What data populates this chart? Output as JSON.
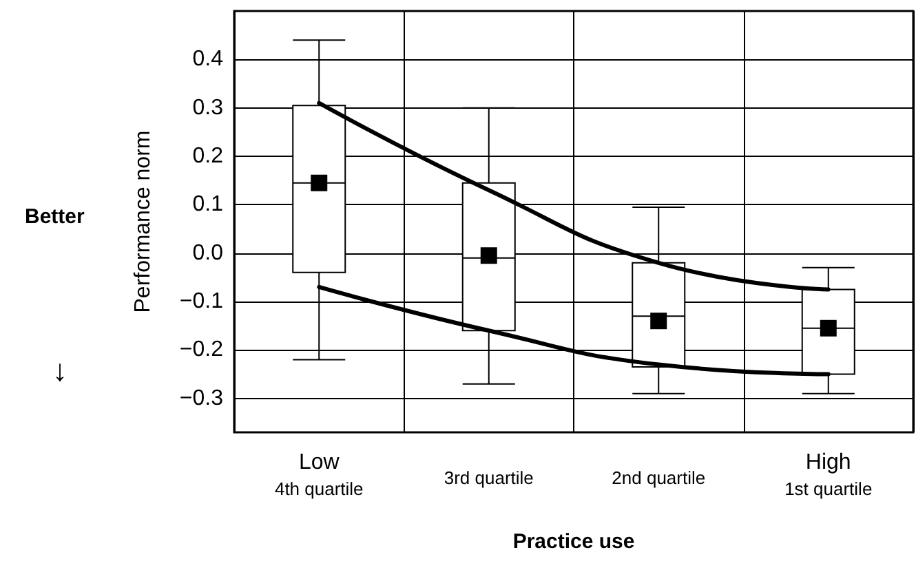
{
  "chart_data": {
    "type": "box",
    "xlabel": "Practice use",
    "ylabel": "Performance norm",
    "annotations": [
      "Better",
      "↓"
    ],
    "categories": [
      "Low\n4th quartile",
      "3rd quartile",
      "2nd quartile",
      "High\n1st quartile"
    ],
    "boxes": [
      {
        "low": -0.22,
        "q1": -0.04,
        "median": 0.145,
        "q3": 0.305,
        "high": 0.44,
        "mean": 0.145
      },
      {
        "low": -0.27,
        "q1": -0.16,
        "median": -0.01,
        "q3": 0.145,
        "high": 0.3,
        "mean": -0.005
      },
      {
        "low": -0.29,
        "q1": -0.235,
        "median": -0.13,
        "q3": -0.02,
        "high": 0.095,
        "mean": -0.14
      },
      {
        "low": -0.29,
        "q1": -0.25,
        "median": -0.155,
        "q3": -0.075,
        "high": -0.03,
        "mean": -0.155
      }
    ],
    "series": [
      {
        "type": "line",
        "color": "#000000",
        "x": [
          "Low\n4th quartile",
          "3rd quartile",
          "2nd quartile",
          "High\n1st quartile"
        ],
        "values": [
          0.31,
          0.13,
          -0.02,
          -0.075
        ],
        "marker": "none"
      },
      {
        "type": "line",
        "color": "#000000",
        "x": [
          "Low\n4th quartile",
          "3rd quartile",
          "2nd quartile",
          "High\n1st quartile"
        ],
        "values": [
          -0.07,
          -0.16,
          -0.23,
          -0.25
        ],
        "marker": "none"
      }
    ],
    "ylim": [
      -0.37,
      0.5
    ],
    "yticks": [
      {
        "value": -0.3,
        "label": "−0.3"
      },
      {
        "value": -0.2,
        "label": "−0.2"
      },
      {
        "value": -0.1,
        "label": "−0.1"
      },
      {
        "value": 0,
        "label": "0.0"
      },
      {
        "value": 0.1,
        "label": "0.1"
      },
      {
        "value": 0.2,
        "label": "0.2"
      },
      {
        "value": 0.3,
        "label": "0.3"
      },
      {
        "value": 0.4,
        "label": "0.4"
      }
    ],
    "grid": true
  }
}
